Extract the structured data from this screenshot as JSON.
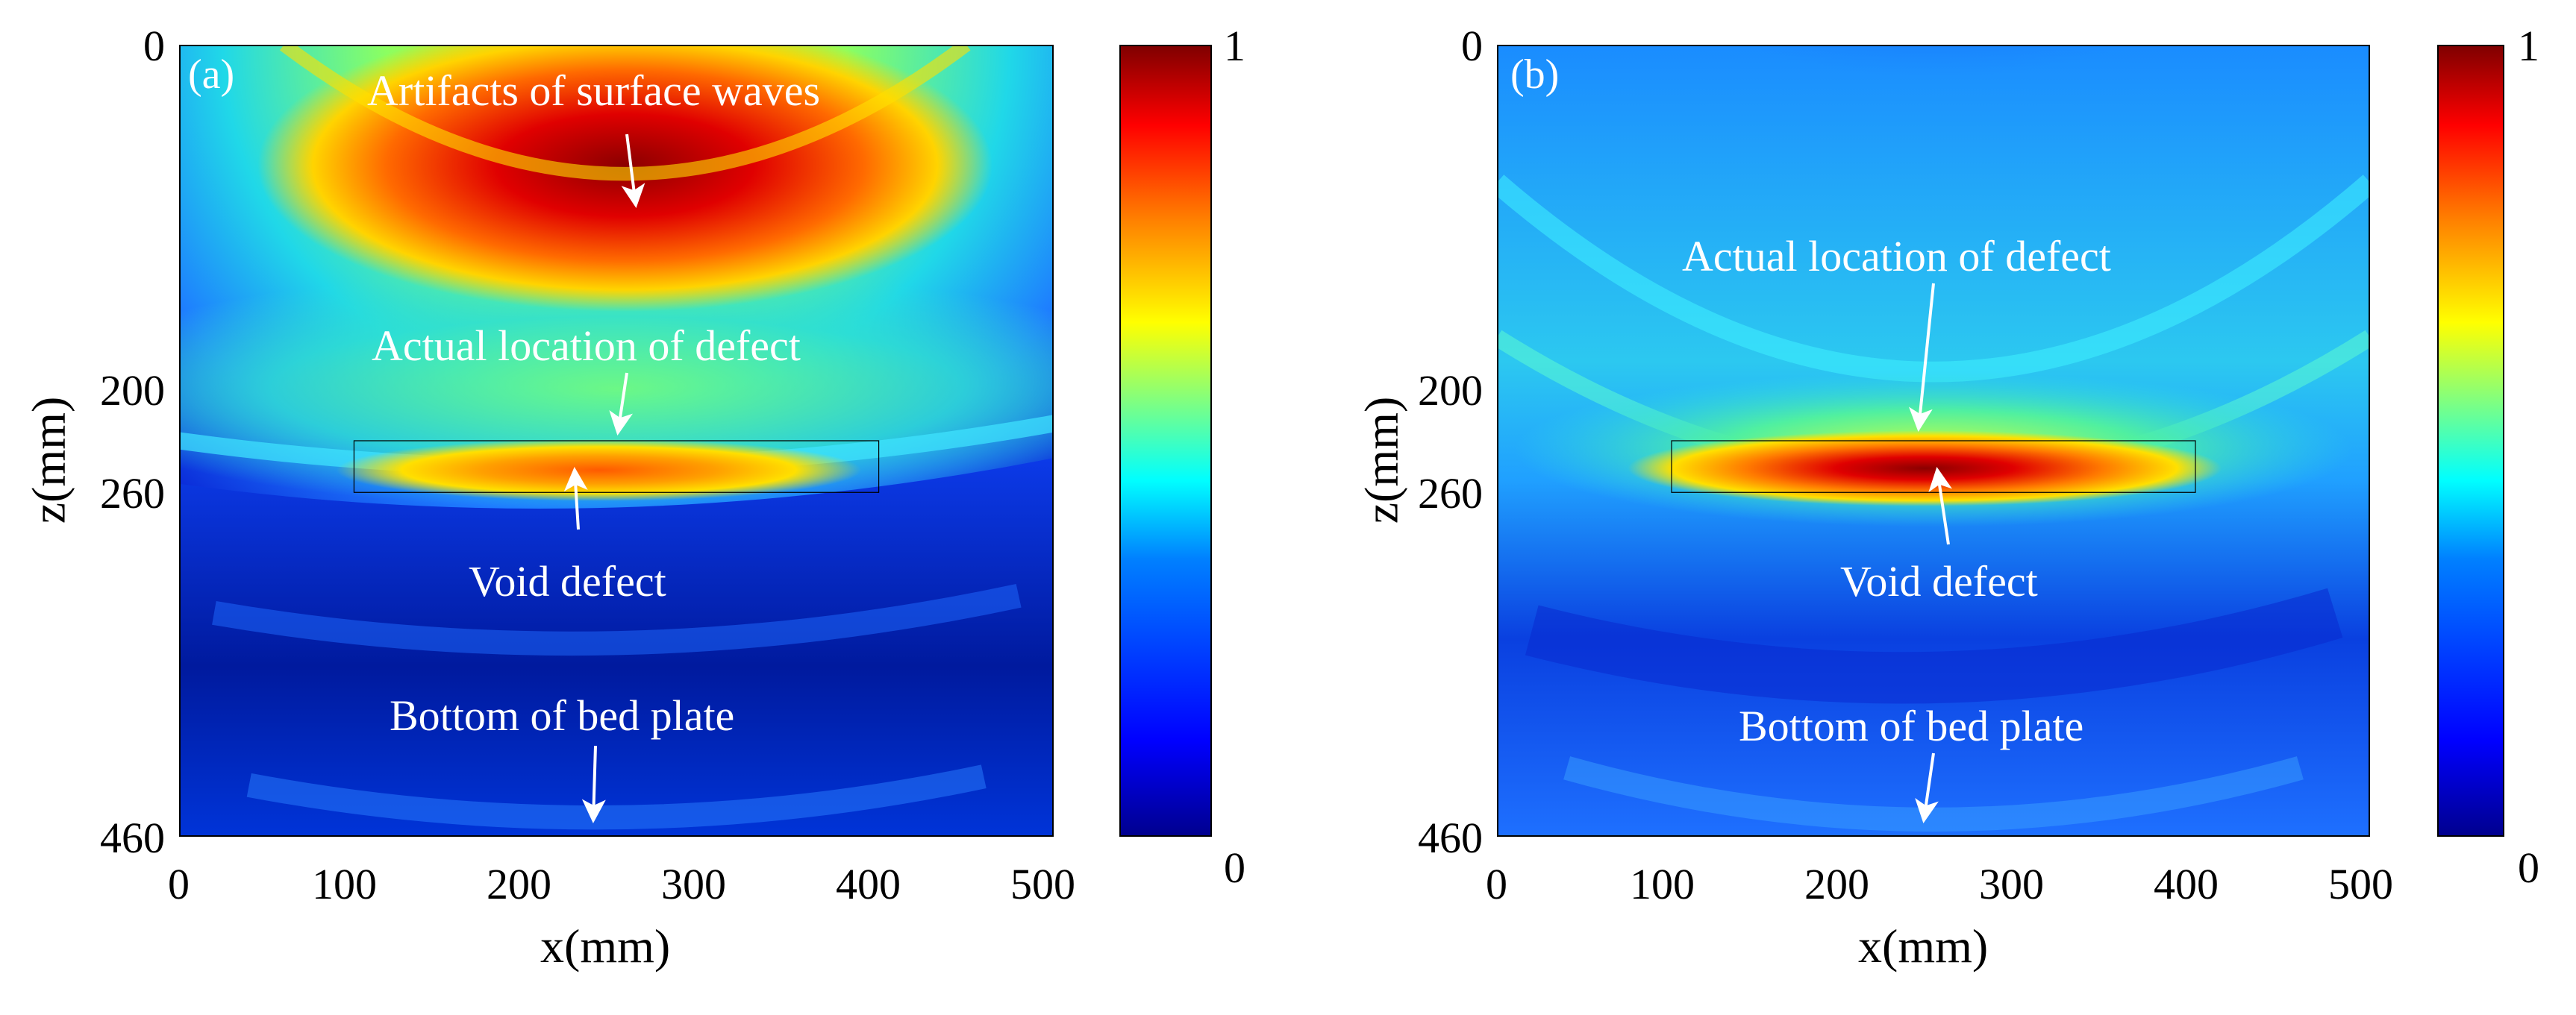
{
  "chart_data": [
    {
      "type": "heatmap",
      "panel_label": "(a)",
      "xlabel": "x(mm)",
      "ylabel": "z(mm)",
      "xlim": [
        0,
        500
      ],
      "ylim": [
        0,
        460
      ],
      "x_ticks": [
        "0",
        "100",
        "200",
        "300",
        "400",
        "500"
      ],
      "y_ticks": [
        "0",
        "200",
        "260",
        "460"
      ],
      "colorbar": {
        "min_label": "0",
        "max_label": "1",
        "range": [
          0,
          1
        ],
        "colormap": "jet"
      },
      "defect_box": {
        "x": [
          100,
          400
        ],
        "z": [
          230,
          260
        ]
      },
      "intensity_peaks": [
        {
          "name": "surface_wave_artifacts",
          "x": 260,
          "z": 85,
          "value": 1.0
        },
        {
          "name": "defect_response",
          "x": 250,
          "z": 250,
          "value": 0.75
        }
      ],
      "annotations": [
        {
          "text": "Artifacts of surface waves",
          "points_to": [
            260,
            95
          ]
        },
        {
          "text": "Actual location of defect",
          "points_to": [
            250,
            230
          ]
        },
        {
          "text": "Void defect",
          "points_to": [
            225,
            245
          ]
        },
        {
          "text": "Bottom of bed plate",
          "points_to": [
            235,
            455
          ]
        }
      ]
    },
    {
      "type": "heatmap",
      "panel_label": "(b)",
      "xlabel": "x(mm)",
      "ylabel": "z(mm)",
      "xlim": [
        0,
        500
      ],
      "ylim": [
        0,
        460
      ],
      "x_ticks": [
        "0",
        "100",
        "200",
        "300",
        "400",
        "500"
      ],
      "y_ticks": [
        "0",
        "200",
        "260",
        "460"
      ],
      "colorbar": {
        "min_label": "0",
        "max_label": "1",
        "range": [
          0,
          1
        ],
        "colormap": "jet"
      },
      "defect_box": {
        "x": [
          100,
          400
        ],
        "z": [
          230,
          260
        ]
      },
      "intensity_peaks": [
        {
          "name": "defect_response",
          "x": 250,
          "z": 245,
          "value": 1.0
        }
      ],
      "annotations": [
        {
          "text": "Actual location of defect",
          "points_to": [
            245,
            225
          ]
        },
        {
          "text": "Void defect",
          "points_to": [
            255,
            245
          ]
        },
        {
          "text": "Bottom of bed plate",
          "points_to": [
            245,
            450
          ]
        }
      ]
    }
  ]
}
